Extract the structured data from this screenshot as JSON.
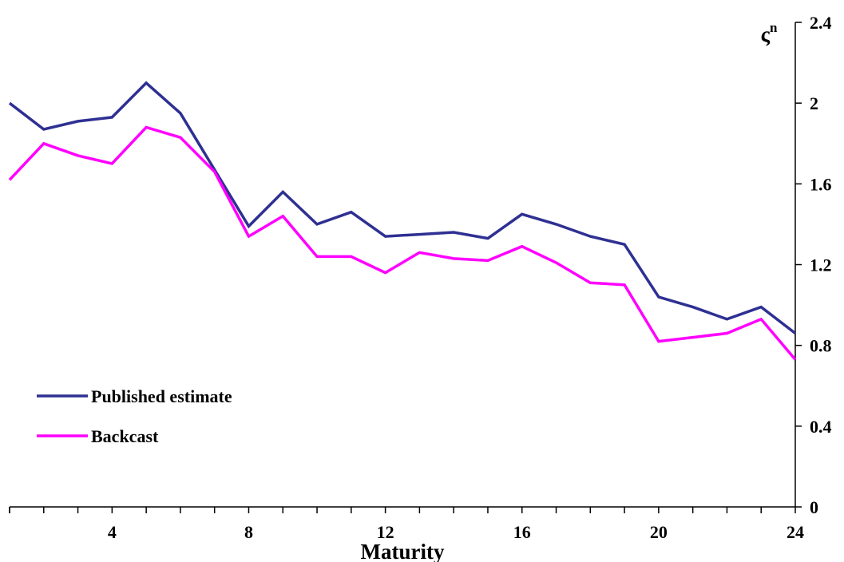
{
  "chart_data": {
    "type": "line",
    "x": [
      1,
      2,
      3,
      4,
      5,
      6,
      7,
      8,
      9,
      10,
      11,
      12,
      13,
      14,
      15,
      16,
      17,
      18,
      19,
      20,
      21,
      22,
      23,
      24
    ],
    "xticks": [
      4,
      8,
      12,
      16,
      20,
      24
    ],
    "xlim": [
      1,
      24
    ],
    "ylim": [
      0,
      2.4
    ],
    "yticks": [
      0,
      0.4,
      0.8,
      1.2,
      1.6,
      2,
      2.4
    ],
    "xlabel": "Maturity",
    "ylabel": "ς",
    "ylabel_superscript": "n",
    "legend_position": "lower-left",
    "series": [
      {
        "name": "Published estimate",
        "color": "#2e3092",
        "values": [
          2.0,
          1.87,
          1.91,
          1.93,
          2.1,
          1.95,
          1.67,
          1.39,
          1.56,
          1.4,
          1.46,
          1.34,
          1.35,
          1.36,
          1.33,
          1.45,
          1.4,
          1.34,
          1.3,
          1.04,
          0.99,
          0.93,
          0.99,
          0.86
        ]
      },
      {
        "name": "Backcast",
        "color": "#ff00ff",
        "values": [
          1.62,
          1.8,
          1.74,
          1.7,
          1.88,
          1.83,
          1.66,
          1.34,
          1.44,
          1.24,
          1.24,
          1.16,
          1.26,
          1.23,
          1.22,
          1.29,
          1.21,
          1.11,
          1.1,
          0.82,
          0.84,
          0.86,
          0.93,
          0.73
        ]
      }
    ]
  }
}
